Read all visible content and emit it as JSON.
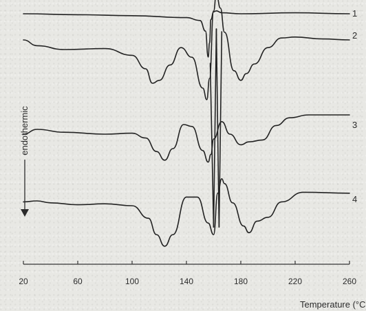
{
  "chart_data": {
    "type": "line",
    "xlabel": "Temperature (°C)",
    "ylabel": "endothermic",
    "xlim": [
      20,
      260
    ],
    "x_ticks": [
      20,
      60,
      100,
      140,
      180,
      220,
      260
    ],
    "x_tick_labels": [
      "20",
      "60",
      "100",
      "140",
      "180",
      "220",
      "260"
    ],
    "grid": false,
    "series": [
      {
        "name": "1",
        "x": [
          20,
          60,
          100,
          140,
          150,
          154,
          156,
          157,
          158,
          160,
          162,
          166,
          180,
          220,
          260
        ],
        "y": [
          0,
          -0.1,
          -0.2,
          -0.4,
          -0.7,
          -1.8,
          -4.5,
          -3.0,
          -0.6,
          0.2,
          0.3,
          0.1,
          0,
          0.1,
          0
        ]
      },
      {
        "name": "2",
        "x": [
          20,
          30,
          50,
          80,
          100,
          110,
          115,
          120,
          128,
          136,
          144,
          152,
          155,
          157,
          160,
          162,
          165,
          168,
          175,
          180,
          184,
          190,
          200,
          210,
          220,
          240,
          260
        ],
        "y": [
          0,
          -0.6,
          -1.0,
          -0.9,
          -1.6,
          -3.0,
          -4.5,
          -4.2,
          -2.6,
          -0.8,
          -1.8,
          -5.0,
          -6.2,
          -4.0,
          3.0,
          4.8,
          3.3,
          0.8,
          -3.2,
          -4.2,
          -3.5,
          -2.5,
          -0.8,
          0.2,
          0.3,
          0.1,
          0
        ]
      },
      {
        "name": "3",
        "x": [
          20,
          30,
          50,
          80,
          100,
          110,
          118,
          124,
          130,
          138,
          144,
          152,
          156,
          158,
          160,
          166,
          172,
          180,
          186,
          196,
          206,
          216,
          230,
          260
        ],
        "y": [
          -0.5,
          0,
          -0.3,
          -0.5,
          -0.4,
          -0.9,
          -2.3,
          -3.2,
          -2.0,
          0.5,
          0.3,
          -2.2,
          -3.4,
          -2.6,
          -1.0,
          0.8,
          -0.5,
          -1.6,
          -1.3,
          -1.1,
          0.4,
          1.2,
          1.5,
          1.5
        ]
      },
      {
        "name": "4",
        "x": [
          20,
          30,
          40,
          60,
          80,
          100,
          112,
          118,
          124,
          130,
          140,
          148,
          156,
          160,
          163,
          166,
          168,
          174,
          182,
          186,
          192,
          200,
          210,
          226,
          260
        ],
        "y": [
          -0.1,
          0,
          -0.2,
          -0.4,
          -0.3,
          -0.5,
          -1.8,
          -3.5,
          -4.7,
          -3.5,
          0.4,
          0.4,
          -2.3,
          -3.5,
          0.8,
          2.3,
          1.8,
          -0.2,
          -2.6,
          -3.3,
          -2.1,
          -1.7,
          -0.1,
          0.9,
          0.8
        ]
      }
    ],
    "spike": {
      "x": [
        157.5,
        160,
        162,
        164,
        166
      ],
      "note": "a thin vertical spike joining curves 2, 3 and 4 near 160 °C"
    },
    "offsets": [
      0,
      -1,
      -2,
      -3
    ]
  }
}
